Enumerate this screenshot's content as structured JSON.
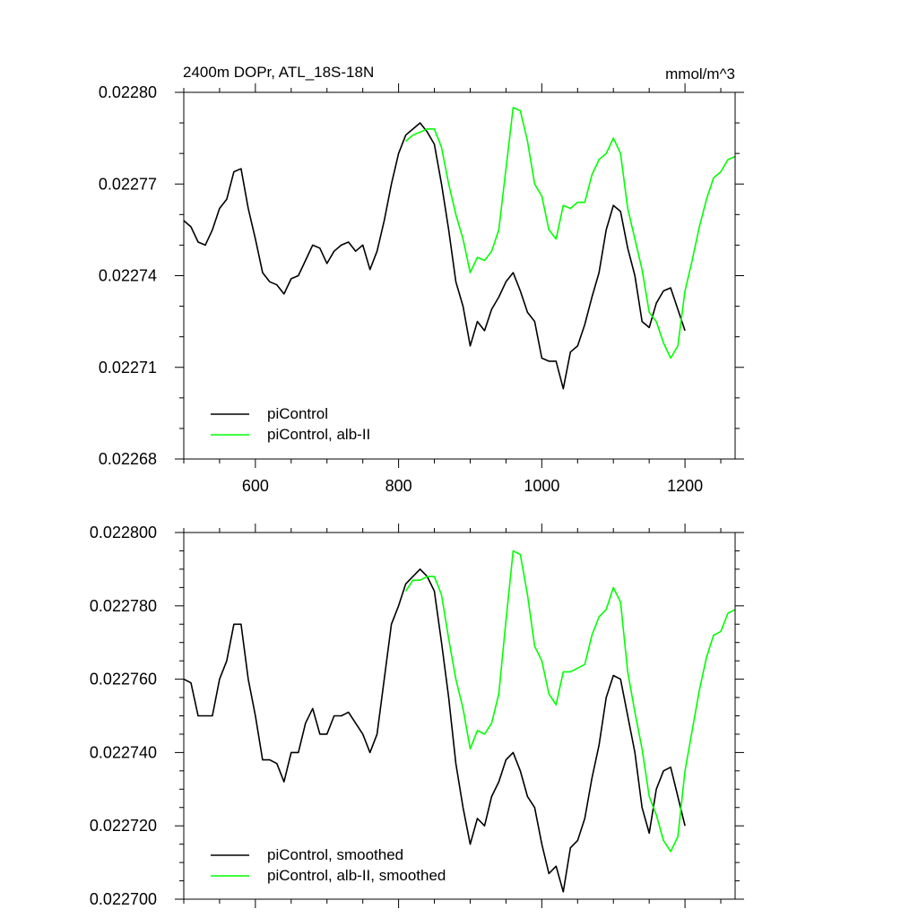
{
  "chart_data": [
    {
      "type": "line",
      "title": "2400m DOPr, ATL_18S-18N",
      "units_label": "mmol/m^3",
      "xlim": [
        500,
        1270
      ],
      "ylim": [
        0.02268,
        0.0228
      ],
      "x_ticks": [
        600,
        800,
        1000,
        1200
      ],
      "x_tick_labels": [
        "600",
        "800",
        "1000",
        "1200"
      ],
      "y_ticks": [
        0.02268,
        0.02271,
        0.02274,
        0.02277,
        0.0228
      ],
      "y_tick_labels": [
        "0.02268",
        "0.02271",
        "0.02274",
        "0.02277",
        "0.02280"
      ],
      "grid": false,
      "legend_position": "bottom-left",
      "series": [
        {
          "name": "piControl",
          "color": "#000000",
          "x": [
            500,
            510,
            520,
            530,
            540,
            550,
            560,
            570,
            580,
            590,
            600,
            610,
            620,
            630,
            640,
            650,
            660,
            670,
            680,
            690,
            700,
            710,
            720,
            730,
            740,
            750,
            760,
            770,
            780,
            790,
            800,
            810,
            820,
            830,
            840,
            850,
            860,
            870,
            880,
            890,
            900,
            910,
            920,
            930,
            940,
            950,
            960,
            970,
            980,
            990,
            1000,
            1010,
            1020,
            1030,
            1040,
            1050,
            1060,
            1070,
            1080,
            1090,
            1100,
            1110,
            1120,
            1130,
            1140,
            1150,
            1160,
            1170,
            1180,
            1190,
            1200
          ],
          "y": [
            0.022758,
            0.022756,
            0.022751,
            0.02275,
            0.022755,
            0.022762,
            0.022765,
            0.022774,
            0.022775,
            0.022762,
            0.022752,
            0.022741,
            0.022738,
            0.022737,
            0.022734,
            0.022739,
            0.02274,
            0.022745,
            0.02275,
            0.022749,
            0.022744,
            0.022748,
            0.02275,
            0.022751,
            0.022748,
            0.02275,
            0.022742,
            0.022748,
            0.022758,
            0.02277,
            0.02278,
            0.022786,
            0.022788,
            0.02279,
            0.022787,
            0.022783,
            0.02277,
            0.022755,
            0.022738,
            0.02273,
            0.022717,
            0.022725,
            0.022722,
            0.022729,
            0.022733,
            0.022738,
            0.022741,
            0.022735,
            0.022728,
            0.022725,
            0.022713,
            0.022712,
            0.022712,
            0.022703,
            0.022715,
            0.022717,
            0.022724,
            0.022733,
            0.022741,
            0.022755,
            0.022763,
            0.022761,
            0.022749,
            0.02274,
            0.022725,
            0.022723,
            0.022731,
            0.022735,
            0.022736,
            0.022729,
            0.022722
          ]
        },
        {
          "name": "piControl, alb-II",
          "color": "#00ff00",
          "x": [
            810,
            820,
            830,
            840,
            850,
            860,
            870,
            880,
            890,
            900,
            910,
            920,
            930,
            940,
            950,
            960,
            970,
            980,
            990,
            1000,
            1010,
            1020,
            1030,
            1040,
            1050,
            1060,
            1070,
            1080,
            1090,
            1100,
            1110,
            1120,
            1130,
            1140,
            1150,
            1160,
            1170,
            1180,
            1190,
            1200,
            1210,
            1220,
            1230,
            1240,
            1250,
            1260,
            1270
          ],
          "y": [
            0.022784,
            0.022786,
            0.022787,
            0.022788,
            0.022788,
            0.022782,
            0.02277,
            0.02276,
            0.022752,
            0.022741,
            0.022746,
            0.022745,
            0.022748,
            0.022755,
            0.022775,
            0.022795,
            0.022794,
            0.022784,
            0.02277,
            0.022766,
            0.022755,
            0.022752,
            0.022763,
            0.022762,
            0.022764,
            0.022764,
            0.022773,
            0.022778,
            0.02278,
            0.022785,
            0.02278,
            0.022762,
            0.022752,
            0.022742,
            0.022728,
            0.022725,
            0.022718,
            0.022713,
            0.022717,
            0.022735,
            0.022745,
            0.022756,
            0.022765,
            0.022772,
            0.022774,
            0.022778,
            0.022779
          ]
        }
      ]
    },
    {
      "type": "line",
      "title": "",
      "xlim": [
        500,
        1270
      ],
      "ylim": [
        0.0227,
        0.0228
      ],
      "x_ticks": [
        600,
        800,
        1000,
        1200
      ],
      "y_ticks": [
        0.0227,
        0.02272,
        0.02274,
        0.02276,
        0.02278,
        0.0228
      ],
      "y_tick_labels": [
        "0.022700",
        "0.022720",
        "0.022740",
        "0.022760",
        "0.022780",
        "0.022800"
      ],
      "grid": false,
      "legend_position": "bottom-left",
      "series": [
        {
          "name": "piControl, smoothed",
          "color": "#000000",
          "x": [
            500,
            510,
            520,
            530,
            540,
            550,
            560,
            570,
            580,
            590,
            600,
            610,
            620,
            630,
            640,
            650,
            660,
            670,
            680,
            690,
            700,
            710,
            720,
            730,
            740,
            750,
            760,
            770,
            780,
            790,
            800,
            810,
            820,
            830,
            840,
            850,
            860,
            870,
            880,
            890,
            900,
            910,
            920,
            930,
            940,
            950,
            960,
            970,
            980,
            990,
            1000,
            1010,
            1020,
            1030,
            1040,
            1050,
            1060,
            1070,
            1080,
            1090,
            1100,
            1110,
            1120,
            1130,
            1140,
            1150,
            1160,
            1170,
            1180,
            1190,
            1200
          ],
          "y": [
            0.02276,
            0.022759,
            0.02275,
            0.02275,
            0.02275,
            0.02276,
            0.022765,
            0.022775,
            0.022775,
            0.02276,
            0.02275,
            0.022738,
            0.022738,
            0.022737,
            0.022732,
            0.02274,
            0.02274,
            0.022748,
            0.022752,
            0.022745,
            0.022745,
            0.02275,
            0.02275,
            0.022751,
            0.022748,
            0.022745,
            0.02274,
            0.022745,
            0.02276,
            0.022775,
            0.02278,
            0.022786,
            0.022788,
            0.02279,
            0.022788,
            0.022784,
            0.02277,
            0.022755,
            0.022737,
            0.022725,
            0.022715,
            0.022722,
            0.02272,
            0.022728,
            0.022732,
            0.022738,
            0.02274,
            0.022735,
            0.022728,
            0.022725,
            0.022715,
            0.022707,
            0.022709,
            0.022702,
            0.022714,
            0.022716,
            0.022722,
            0.022733,
            0.022742,
            0.022755,
            0.022761,
            0.02276,
            0.02275,
            0.02274,
            0.022725,
            0.022718,
            0.02273,
            0.022735,
            0.022736,
            0.022728,
            0.02272
          ]
        },
        {
          "name": "piControl, alb-II, smoothed",
          "color": "#00ff00",
          "x": [
            810,
            820,
            830,
            840,
            850,
            860,
            870,
            880,
            890,
            900,
            910,
            920,
            930,
            940,
            950,
            960,
            970,
            980,
            990,
            1000,
            1010,
            1020,
            1030,
            1040,
            1050,
            1060,
            1070,
            1080,
            1090,
            1100,
            1110,
            1120,
            1130,
            1140,
            1150,
            1160,
            1170,
            1180,
            1190,
            1200,
            1210,
            1220,
            1230,
            1240,
            1250,
            1260,
            1270
          ],
          "y": [
            0.022784,
            0.022787,
            0.022787,
            0.022788,
            0.022788,
            0.022783,
            0.022771,
            0.02276,
            0.022752,
            0.022741,
            0.022746,
            0.022745,
            0.022748,
            0.022756,
            0.022776,
            0.022795,
            0.022794,
            0.022783,
            0.022769,
            0.022765,
            0.022756,
            0.022753,
            0.022762,
            0.022762,
            0.022763,
            0.022764,
            0.022772,
            0.022777,
            0.022779,
            0.022785,
            0.022781,
            0.022762,
            0.022751,
            0.022741,
            0.022728,
            0.022723,
            0.022716,
            0.022713,
            0.022717,
            0.022735,
            0.022746,
            0.022757,
            0.022766,
            0.022772,
            0.022773,
            0.022778,
            0.022779
          ]
        }
      ]
    }
  ]
}
